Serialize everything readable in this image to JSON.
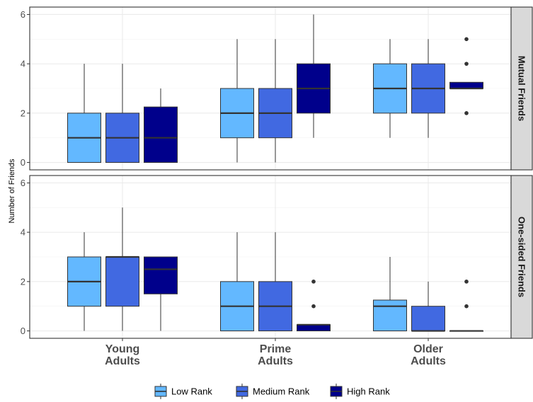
{
  "chart_data": {
    "type": "boxplot",
    "ylabel": "Number of Friends",
    "categories": [
      "Young\nAdults",
      "Prime\nAdults",
      "Older\nAdults"
    ],
    "ylim": [
      -0.3,
      6.3
    ],
    "yticks": [
      0,
      2,
      4,
      6
    ],
    "grid": true,
    "legend_position": "bottom",
    "series": [
      {
        "name": "Low Rank",
        "color": "#63b8ff"
      },
      {
        "name": "Medium Rank",
        "color": "#4169e1"
      },
      {
        "name": "High Rank",
        "color": "#00008b"
      }
    ],
    "panels": [
      {
        "strip": "Mutual Friends",
        "boxes": [
          [
            {
              "min": 0,
              "q1": 0,
              "median": 1,
              "q3": 2,
              "max": 4,
              "outliers": []
            },
            {
              "min": 0,
              "q1": 0,
              "median": 1,
              "q3": 2,
              "max": 4,
              "outliers": []
            },
            {
              "min": 0,
              "q1": 0,
              "median": 1,
              "q3": 2.25,
              "max": 3,
              "outliers": []
            }
          ],
          [
            {
              "min": 0,
              "q1": 1,
              "median": 2,
              "q3": 3,
              "max": 5,
              "outliers": []
            },
            {
              "min": 0,
              "q1": 1,
              "median": 2,
              "q3": 3,
              "max": 5,
              "outliers": []
            },
            {
              "min": 1,
              "q1": 2,
              "median": 3,
              "q3": 4,
              "max": 6,
              "outliers": []
            }
          ],
          [
            {
              "min": 1,
              "q1": 2,
              "median": 3,
              "q3": 4,
              "max": 5,
              "outliers": []
            },
            {
              "min": 1,
              "q1": 2,
              "median": 3,
              "q3": 4,
              "max": 5,
              "outliers": []
            },
            {
              "min": 3,
              "q1": 3,
              "median": 3,
              "q3": 3.25,
              "max": 3.25,
              "outliers": [
                2,
                4,
                5
              ]
            }
          ]
        ]
      },
      {
        "strip": "One-sided Friends",
        "boxes": [
          [
            {
              "min": 0,
              "q1": 1,
              "median": 2,
              "q3": 3,
              "max": 4,
              "outliers": []
            },
            {
              "min": 0,
              "q1": 1,
              "median": 3,
              "q3": 3,
              "max": 5,
              "outliers": []
            },
            {
              "min": 0,
              "q1": 1.5,
              "median": 2.5,
              "q3": 3,
              "max": 3,
              "outliers": []
            }
          ],
          [
            {
              "min": 0,
              "q1": 0,
              "median": 1,
              "q3": 2,
              "max": 4,
              "outliers": []
            },
            {
              "min": 0,
              "q1": 0,
              "median": 1,
              "q3": 2,
              "max": 4,
              "outliers": []
            },
            {
              "min": 0,
              "q1": 0,
              "median": 0.25,
              "q3": 0.25,
              "max": 0.25,
              "outliers": [
                1,
                2
              ]
            }
          ],
          [
            {
              "min": 0,
              "q1": 0,
              "median": 1,
              "q3": 1.25,
              "max": 3,
              "outliers": []
            },
            {
              "min": 0,
              "q1": 0,
              "median": 0,
              "q3": 1,
              "max": 2,
              "outliers": []
            },
            {
              "min": 0,
              "q1": 0,
              "median": 0,
              "q3": 0,
              "max": 0,
              "outliers": [
                1,
                2
              ]
            }
          ]
        ]
      }
    ]
  }
}
